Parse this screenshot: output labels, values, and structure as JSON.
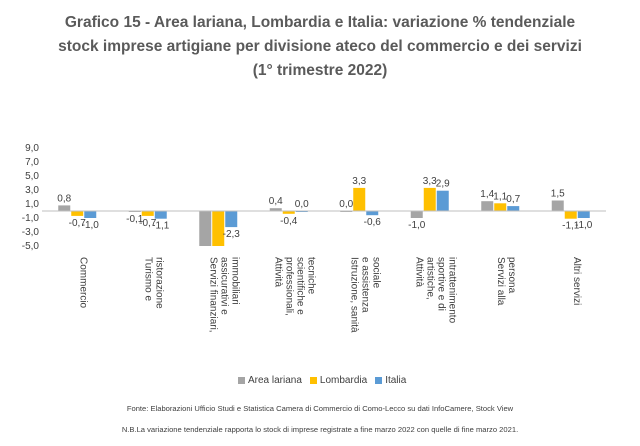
{
  "chart_data": {
    "type": "bar",
    "title_lines": [
      "Grafico 15 - Area lariana, Lombardia e Italia: variazione % tendenziale",
      "stock imprese artigiane per divisione ateco del commercio e dei servizi",
      "(1° trimestre 2022)"
    ],
    "categories": [
      [
        "Commercio"
      ],
      [
        "Turismo e",
        "ristorazione"
      ],
      [
        "Servizi finanziari,",
        "assicurativi e",
        "immobiliari"
      ],
      [
        "Attività",
        "professionali,",
        "scientifiche e",
        "tecniche"
      ],
      [
        "Istruzione, sanità",
        "e assistenza",
        "sociale"
      ],
      [
        "Attività",
        "artistiche,",
        "sportive e di",
        "intrattenimento"
      ],
      [
        "Servizi alla",
        "persona"
      ],
      [
        "Altri servizi"
      ]
    ],
    "series": [
      {
        "name": "Area lariana",
        "color": "#a5a5a5",
        "values": [
          0.8,
          -0.1,
          -5.0,
          0.4,
          0.0,
          -1.0,
          1.4,
          1.5
        ],
        "labels": [
          "0,8",
          "-0,1",
          "",
          "0,4",
          "0,0",
          "-1,0",
          "1,4",
          "1,5"
        ]
      },
      {
        "name": "Lombardia",
        "color": "#ffc000",
        "values": [
          -0.7,
          -0.7,
          -5.0,
          -0.4,
          3.3,
          3.3,
          1.1,
          -1.1
        ],
        "labels": [
          "-0,7",
          "-0,7",
          "",
          "-0,4",
          "3,3",
          "3,3",
          "1,1",
          "-1,1"
        ]
      },
      {
        "name": "Italia",
        "color": "#5b9bd5",
        "values": [
          -1.0,
          -1.1,
          -2.3,
          0.0,
          -0.6,
          2.9,
          0.7,
          -1.0
        ],
        "labels": [
          "-1,0",
          "-1,1",
          "-2,3",
          "0,0",
          "-0,6",
          "2,9",
          "0,7",
          "-1,0"
        ]
      }
    ],
    "yticks": [
      "9,0",
      "7,0",
      "5,0",
      "3,0",
      "1,0",
      "-1,0",
      "-3,0",
      "-5,0"
    ],
    "ylim": [
      -5,
      9
    ],
    "grid": false,
    "legend_position": "bottom"
  },
  "footer": {
    "source": "Fonte: Elaborazioni Ufficio Studi e Statistica Camera di Commercio di Como-Lecco su dati InfoCamere, Stock View",
    "note": "N.B.La variazione tendenziale rapporta lo stock di imprese registrate a fine marzo 2022 con quelle di fine marzo 2021."
  }
}
